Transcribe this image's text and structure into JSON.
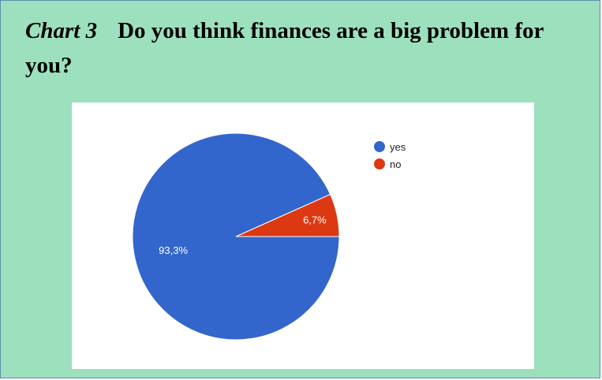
{
  "heading": {
    "chart_number": "Chart 3",
    "question": "Do you think finances are a big problem for you?"
  },
  "colors": {
    "background": "#9de0bd",
    "panel": "#ffffff",
    "yes": "#3366cc",
    "no": "#dc3912"
  },
  "chart_data": {
    "type": "pie",
    "title": "",
    "categories": [
      "yes",
      "no"
    ],
    "values": [
      93.3,
      6.7
    ],
    "labels": [
      "93,3%",
      "6,7%"
    ],
    "colors": [
      "#3366cc",
      "#dc3912"
    ],
    "legend_position": "top-right"
  }
}
